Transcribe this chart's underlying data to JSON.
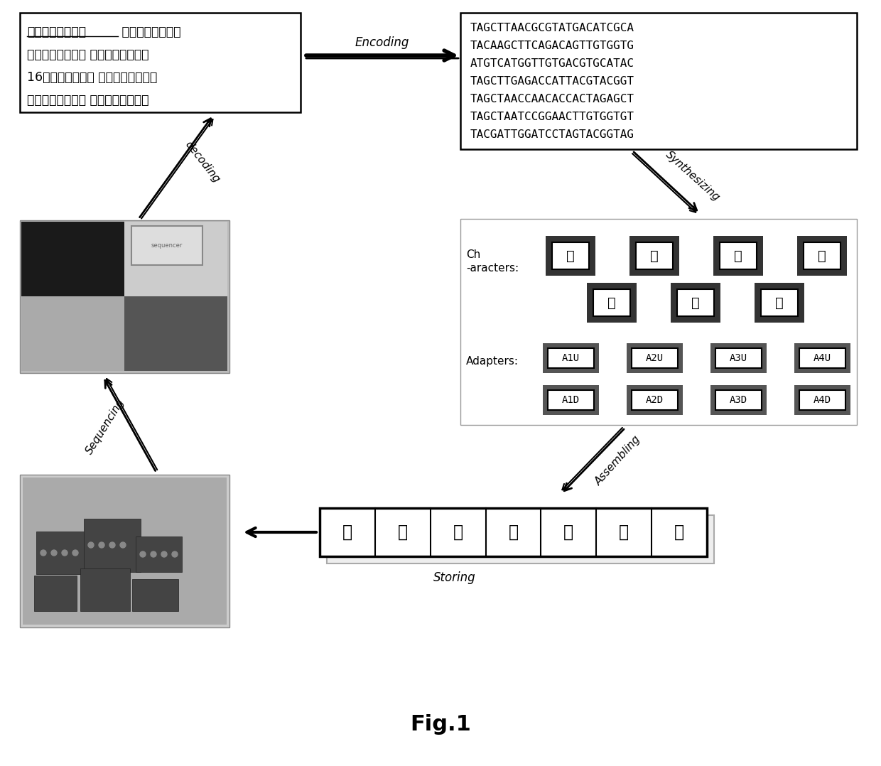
{
  "title": "Fig.1",
  "chinese_lines": [
    "华章谱写基因梦， 大志于胸创未来。",
    "基因科技惠百姓， 因需而生重人才。",
    "16载风雨同舟渡； 周闻天下展风采。",
    "年年今朝贺华诞， 庆祝迎向新时代。"
  ],
  "chinese_bold": "华章谱写基因梦，",
  "chinese_rest_line1": " 大志于胸创未来。",
  "dna_sequences": [
    "TAGCTTAACGCGTATGACATCGCA",
    "TACAAGCTTCAGACAGTTGTGGTG",
    "ATGTCATGGTTGTGACGTGCATAC",
    "TAGCTTGAGACCATTACGTACGGT",
    "TAGCTAACCAACACCACTAGAGCT",
    "TAGCTAATCCGGAACTTGTGGTGT",
    "TACGATTGGATCCTAGTACGGTAG"
  ],
  "characters_row1": [
    "华",
    "章",
    "谱",
    "写"
  ],
  "characters_row2": [
    "基",
    "因",
    "梦"
  ],
  "adapters_row1": [
    "A1U",
    "A2U",
    "A3U",
    "A4U"
  ],
  "adapters_row2": [
    "A1D",
    "A2D",
    "A3D",
    "A4D"
  ],
  "storage_chars": [
    "华",
    "章",
    "谱",
    "写",
    "基",
    "因",
    "梦"
  ],
  "bg_color": "#ffffff"
}
